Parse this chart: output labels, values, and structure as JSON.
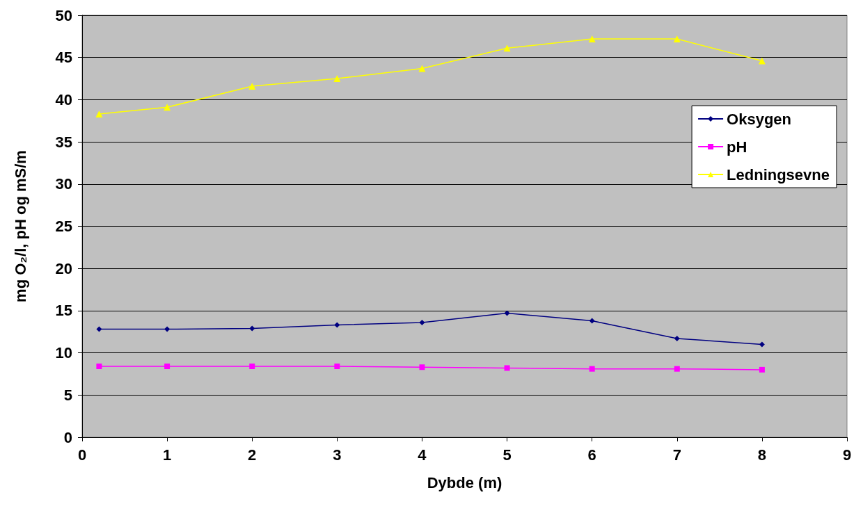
{
  "chart_data": {
    "type": "line",
    "xlabel": "Dybde (m)",
    "ylabel": "mg O₂/l, pH og mS/m",
    "x": [
      0.2,
      1,
      2,
      3,
      4,
      5,
      6,
      7,
      8
    ],
    "series": [
      {
        "name": "Oksygen",
        "color": "#000080",
        "marker": "diamond",
        "values": [
          12.8,
          12.8,
          12.9,
          13.3,
          13.6,
          14.7,
          13.8,
          11.7,
          11.0
        ]
      },
      {
        "name": "pH",
        "color": "#ff00ff",
        "marker": "square",
        "values": [
          8.4,
          8.4,
          8.4,
          8.4,
          8.3,
          8.2,
          8.1,
          8.1,
          8.0
        ]
      },
      {
        "name": "Ledningsevne",
        "color": "#ffff00",
        "marker": "triangle",
        "values": [
          38.3,
          39.1,
          41.6,
          42.5,
          43.7,
          46.1,
          47.2,
          47.2,
          44.6
        ]
      }
    ],
    "xlim": [
      0,
      9
    ],
    "xticks": [
      0,
      1,
      2,
      3,
      4,
      5,
      6,
      7,
      8,
      9
    ],
    "ylim": [
      0,
      50
    ],
    "yticks": [
      0,
      5,
      10,
      15,
      20,
      25,
      30,
      35,
      40,
      45,
      50
    ],
    "grid": "y",
    "legend": "right"
  }
}
